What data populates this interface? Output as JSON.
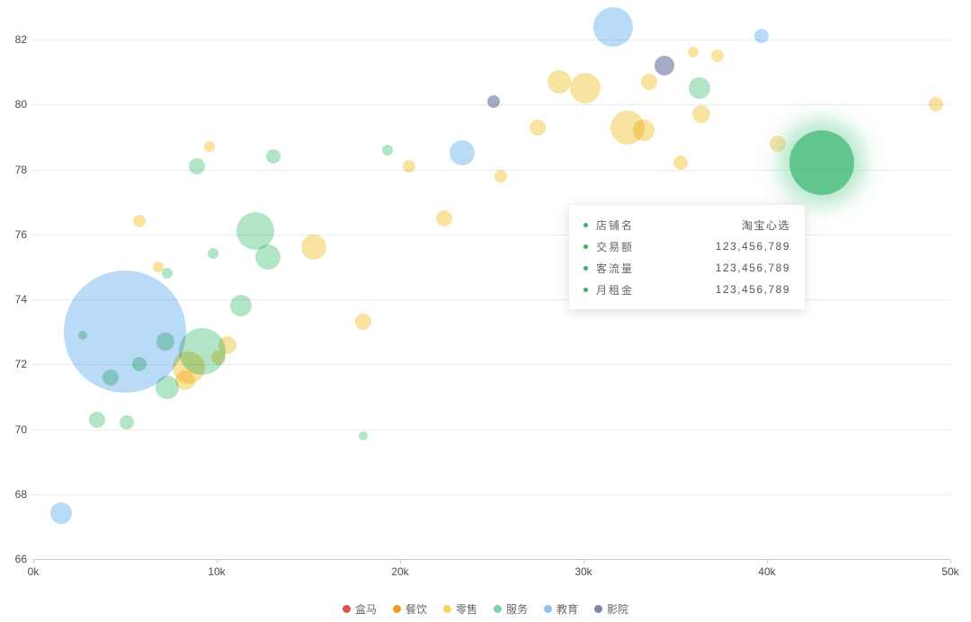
{
  "chart_data": {
    "type": "scatter",
    "title": "",
    "xlabel": "",
    "ylabel": "",
    "x_unit": "k",
    "xlim_k": [
      0,
      50
    ],
    "ylim": [
      66,
      82
    ],
    "grid": "horizontal-dotted",
    "legend_position": "bottom-center",
    "x_ticks": [
      {
        "v": 0,
        "label": "0k"
      },
      {
        "v": 10,
        "label": "10k"
      },
      {
        "v": 20,
        "label": "20k"
      },
      {
        "v": 30,
        "label": "30k"
      },
      {
        "v": 40,
        "label": "40k"
      },
      {
        "v": 50,
        "label": "50k"
      }
    ],
    "y_ticks": [
      66,
      68,
      70,
      72,
      74,
      76,
      78,
      80,
      82
    ],
    "series": [
      {
        "name": "盒马",
        "color": "#e0504e",
        "alpha": 0.8,
        "points": []
      },
      {
        "name": "餐饮",
        "color": "#ef9d20",
        "alpha": 0.8,
        "points": []
      },
      {
        "name": "零售",
        "color": "#f6d267",
        "alpha": 0.62,
        "points": [
          {
            "x": 28.7,
            "y": 80.7,
            "r": 13
          },
          {
            "x": 30.1,
            "y": 80.5,
            "r": 17
          },
          {
            "x": 33.6,
            "y": 80.7,
            "r": 9
          },
          {
            "x": 36.0,
            "y": 81.6,
            "r": 6
          },
          {
            "x": 37.3,
            "y": 81.5,
            "r": 7
          },
          {
            "x": 27.5,
            "y": 79.3,
            "r": 9
          },
          {
            "x": 32.4,
            "y": 79.3,
            "r": 19
          },
          {
            "x": 33.3,
            "y": 79.2,
            "r": 12
          },
          {
            "x": 36.4,
            "y": 79.7,
            "r": 10
          },
          {
            "x": 49.2,
            "y": 80.0,
            "r": 8
          },
          {
            "x": 40.6,
            "y": 78.8,
            "r": 9
          },
          {
            "x": 25.5,
            "y": 77.8,
            "r": 7
          },
          {
            "x": 20.5,
            "y": 78.1,
            "r": 7
          },
          {
            "x": 22.4,
            "y": 76.5,
            "r": 9
          },
          {
            "x": 35.3,
            "y": 78.2,
            "r": 8
          },
          {
            "x": 5.8,
            "y": 76.4,
            "r": 7
          },
          {
            "x": 9.6,
            "y": 78.7,
            "r": 6
          },
          {
            "x": 15.3,
            "y": 75.6,
            "r": 14
          },
          {
            "x": 18.0,
            "y": 73.3,
            "r": 9
          },
          {
            "x": 6.8,
            "y": 75.0,
            "r": 6
          },
          {
            "x": 8.5,
            "y": 71.9,
            "r": 18
          },
          {
            "x": 10.6,
            "y": 72.6,
            "r": 10
          },
          {
            "x": 10.1,
            "y": 72.2,
            "r": 8
          },
          {
            "x": 8.3,
            "y": 71.5,
            "r": 11
          }
        ]
      },
      {
        "name": "服务",
        "color": "#7fd3a0",
        "alpha": 0.6,
        "points": [
          {
            "x": 12.1,
            "y": 76.1,
            "r": 21
          },
          {
            "x": 12.8,
            "y": 75.3,
            "r": 14
          },
          {
            "x": 13.1,
            "y": 78.4,
            "r": 8
          },
          {
            "x": 8.9,
            "y": 78.1,
            "r": 9
          },
          {
            "x": 9.8,
            "y": 75.4,
            "r": 6
          },
          {
            "x": 11.3,
            "y": 73.8,
            "r": 12
          },
          {
            "x": 9.2,
            "y": 72.4,
            "r": 26
          },
          {
            "x": 7.2,
            "y": 72.7,
            "r": 10
          },
          {
            "x": 7.3,
            "y": 71.3,
            "r": 13
          },
          {
            "x": 5.8,
            "y": 72.0,
            "r": 8
          },
          {
            "x": 4.2,
            "y": 71.6,
            "r": 9
          },
          {
            "x": 3.5,
            "y": 70.3,
            "r": 9
          },
          {
            "x": 5.1,
            "y": 70.2,
            "r": 8
          },
          {
            "x": 2.7,
            "y": 72.9,
            "r": 5
          },
          {
            "x": 18.0,
            "y": 69.8,
            "r": 5
          },
          {
            "x": 19.3,
            "y": 78.6,
            "r": 6
          },
          {
            "x": 36.3,
            "y": 80.5,
            "r": 12
          },
          {
            "x": 7.3,
            "y": 74.8,
            "r": 6
          }
        ]
      },
      {
        "name": "教育",
        "color": "#8cc3f1",
        "alpha": 0.6,
        "points": [
          {
            "x": 31.6,
            "y": 82.4,
            "r": 22
          },
          {
            "x": 39.7,
            "y": 82.1,
            "r": 8
          },
          {
            "x": 23.4,
            "y": 78.5,
            "r": 14
          },
          {
            "x": 5.0,
            "y": 73.0,
            "r": 68
          },
          {
            "x": 1.5,
            "y": 67.4,
            "r": 12
          }
        ]
      },
      {
        "name": "影院",
        "color": "#7f88ab",
        "alpha": 0.7,
        "points": [
          {
            "x": 34.4,
            "y": 81.2,
            "r": 11
          },
          {
            "x": 25.1,
            "y": 80.1,
            "r": 7
          }
        ]
      }
    ],
    "highlight": {
      "series": "服务",
      "x": 43.0,
      "y": 78.2,
      "r": 36,
      "color": "#54c184"
    }
  },
  "tooltip": {
    "rows": [
      {
        "label": "店铺名",
        "value": "淘宝心选"
      },
      {
        "label": "交易额",
        "value": "123,456,789"
      },
      {
        "label": "客流量",
        "value": "123,456,789"
      },
      {
        "label": "月租金",
        "value": "123,456,789"
      }
    ]
  }
}
